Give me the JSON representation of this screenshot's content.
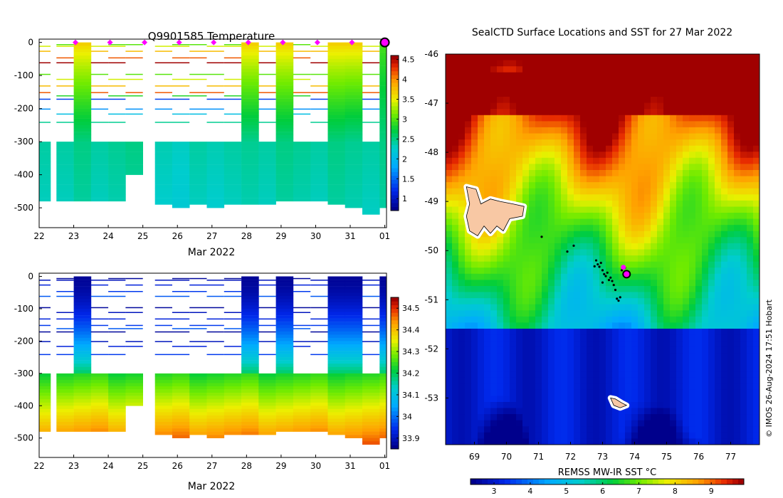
{
  "chart_data": [
    {
      "id": "temperature",
      "type": "heatmap",
      "title": "Q9901585  Temperature",
      "xlabel": "Mar 2022",
      "ylabel": "",
      "x_ticks": [
        "22",
        "23",
        "24",
        "25",
        "26",
        "27",
        "28",
        "29",
        "30",
        "31",
        "01"
      ],
      "y_ticks": [
        "0",
        "-100",
        "-200",
        "-300",
        "-400",
        "-500"
      ],
      "ylim": [
        -560,
        10
      ],
      "xlim": [
        22,
        32.05
      ],
      "colorbar": {
        "ticks": [
          "1",
          "1.5",
          "2",
          "2.5",
          "3",
          "3.5",
          "4",
          "4.5"
        ],
        "range": [
          0.7,
          4.6
        ]
      },
      "profiles": [
        {
          "t": 22.0,
          "w": 0.33,
          "surface": 0.9,
          "deep": 2.4,
          "bottom": -480
        },
        {
          "t": 22.5,
          "w": 0.5,
          "surface": 0.9,
          "deep": 2.4,
          "bottom": -475
        },
        {
          "t": 23.0,
          "w": 0.5,
          "surface": 3.7,
          "deep": 2.5,
          "bottom": -475
        },
        {
          "t": 23.5,
          "w": 0.5,
          "surface": 0.9,
          "deep": 2.4,
          "bottom": -480
        },
        {
          "t": 24.0,
          "w": 0.5,
          "surface": 0.9,
          "deep": 2.45,
          "bottom": -480
        },
        {
          "t": 24.5,
          "w": 0.5,
          "surface": 0.9,
          "deep": 2.5,
          "bottom": -400
        },
        {
          "t": 25.35,
          "w": 0.5,
          "surface": 0.9,
          "deep": 2.35,
          "bottom": -490
        },
        {
          "t": 25.85,
          "w": 0.5,
          "surface": 0.9,
          "deep": 2.3,
          "bottom": -500
        },
        {
          "t": 26.35,
          "w": 0.5,
          "surface": 0.9,
          "deep": 2.4,
          "bottom": -490
        },
        {
          "t": 26.85,
          "w": 0.5,
          "surface": 0.9,
          "deep": 2.35,
          "bottom": -500
        },
        {
          "t": 27.35,
          "w": 0.5,
          "surface": 0.9,
          "deep": 2.4,
          "bottom": -490
        },
        {
          "t": 27.85,
          "w": 0.5,
          "surface": 3.7,
          "deep": 2.45,
          "bottom": -490
        },
        {
          "t": 28.35,
          "w": 0.5,
          "surface": 0.9,
          "deep": 2.4,
          "bottom": -490
        },
        {
          "t": 28.85,
          "w": 0.5,
          "surface": 3.7,
          "deep": 2.5,
          "bottom": -480
        },
        {
          "t": 29.35,
          "w": 0.5,
          "surface": 0.9,
          "deep": 2.45,
          "bottom": -480
        },
        {
          "t": 29.85,
          "w": 0.5,
          "surface": 0.9,
          "deep": 2.4,
          "bottom": -480
        },
        {
          "t": 30.35,
          "w": 0.5,
          "surface": 3.7,
          "deep": 2.5,
          "bottom": -485
        },
        {
          "t": 30.85,
          "w": 0.5,
          "surface": 3.7,
          "deep": 2.45,
          "bottom": -500
        },
        {
          "t": 31.35,
          "w": 0.5,
          "surface": 0.9,
          "deep": 2.4,
          "bottom": -515
        },
        {
          "t": 31.85,
          "w": 0.2,
          "surface": 3.0,
          "deep": 2.5,
          "bottom": -500
        }
      ],
      "markers": [
        23.0,
        24.0,
        25.0,
        26.0,
        27.0,
        28.0,
        29.0,
        30.0,
        31.0
      ],
      "current_marker": 32.0
    },
    {
      "id": "salinity",
      "type": "heatmap",
      "title": "",
      "xlabel": "Mar 2022",
      "ylabel": "",
      "x_ticks": [
        "22",
        "23",
        "24",
        "25",
        "26",
        "27",
        "28",
        "29",
        "30",
        "31",
        "01"
      ],
      "y_ticks": [
        "0",
        "-100",
        "-200",
        "-300",
        "-400",
        "-500"
      ],
      "ylim": [
        -560,
        10
      ],
      "xlim": [
        22,
        32.05
      ],
      "colorbar": {
        "ticks": [
          "33.9",
          "34",
          "34.1",
          "34.2",
          "34.3",
          "34.4",
          "34.5"
        ],
        "range": [
          33.85,
          34.55
        ]
      }
    },
    {
      "id": "sst_map",
      "type": "heatmap",
      "title": "SealCTD Surface Locations and SST for 27 Mar 2022",
      "xlabel": "",
      "ylabel": "",
      "x_ticks": [
        "69",
        "70",
        "71",
        "72",
        "73",
        "74",
        "75",
        "76",
        "77"
      ],
      "y_ticks": [
        "-46",
        "-47",
        "-48",
        "-49",
        "-50",
        "-51",
        "-52",
        "-53"
      ],
      "xlim": [
        68.1,
        77.9
      ],
      "ylim": [
        -53.95,
        -46.0
      ],
      "colorbar": {
        "label": "REMSS MW-IR SST °C",
        "ticks": [
          "3",
          "4",
          "5",
          "6",
          "7",
          "8",
          "9"
        ],
        "range": [
          2.35,
          9.9
        ]
      },
      "locations": [
        {
          "lon": 72.85,
          "lat": -50.28
        },
        {
          "lon": 72.9,
          "lat": -50.33
        },
        {
          "lon": 72.95,
          "lat": -50.25
        },
        {
          "lon": 73.0,
          "lat": -50.4
        },
        {
          "lon": 73.05,
          "lat": -50.48
        },
        {
          "lon": 73.1,
          "lat": -50.52
        },
        {
          "lon": 73.15,
          "lat": -50.45
        },
        {
          "lon": 73.2,
          "lat": -50.6
        },
        {
          "lon": 73.25,
          "lat": -50.55
        },
        {
          "lon": 73.3,
          "lat": -50.62
        },
        {
          "lon": 73.35,
          "lat": -50.7
        },
        {
          "lon": 73.45,
          "lat": -50.98
        },
        {
          "lon": 73.5,
          "lat": -51.02
        },
        {
          "lon": 73.55,
          "lat": -50.95
        },
        {
          "lon": 73.6,
          "lat": -50.4
        },
        {
          "lon": 72.8,
          "lat": -50.2
        },
        {
          "lon": 72.75,
          "lat": -50.32
        },
        {
          "lon": 73.0,
          "lat": -50.65
        },
        {
          "lon": 73.4,
          "lat": -50.8
        },
        {
          "lon": 71.1,
          "lat": -49.72
        },
        {
          "lon": 71.9,
          "lat": -50.02
        },
        {
          "lon": 72.1,
          "lat": -49.9
        },
        {
          "lon": 73.7,
          "lat": -50.35
        }
      ],
      "current_location": {
        "lon": 73.75,
        "lat": -50.48
      }
    }
  ],
  "watermark": "© IMOS 26-Aug-2024 17:51 Hobart"
}
